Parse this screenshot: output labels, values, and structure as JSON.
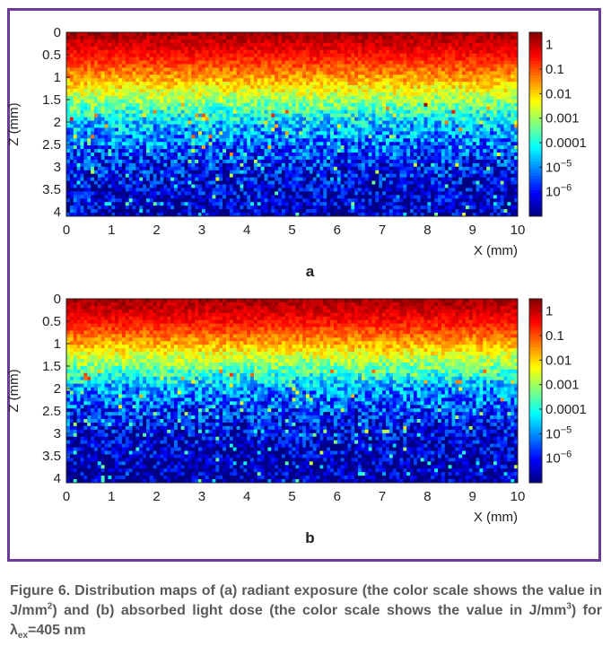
{
  "chart_data": [
    {
      "type": "heatmap",
      "panel_label": "a",
      "xlabel": "X (mm)",
      "ylabel": "Z (mm)",
      "xlim": [
        0,
        10
      ],
      "ylim": [
        0,
        4.1
      ],
      "y_axis_reversed": true,
      "x_ticks": [
        "0",
        "1",
        "2",
        "3",
        "4",
        "5",
        "6",
        "7",
        "8",
        "9",
        "10"
      ],
      "y_ticks": [
        "0",
        "0.5",
        "1",
        "1.5",
        "2",
        "2.5",
        "3",
        "3.5",
        "4"
      ],
      "colorscale": "jet",
      "color_scale_log": true,
      "colorbar_range_log10": [
        -7,
        0.5
      ],
      "colorbar_ticks": [
        {
          "value_log10": 0,
          "label": "1"
        },
        {
          "value_log10": -1,
          "label": "0.1"
        },
        {
          "value_log10": -2,
          "label": "0.01"
        },
        {
          "value_log10": -3,
          "label": "0.001"
        },
        {
          "value_log10": -4,
          "label": "0.0001"
        },
        {
          "value_log10": -5,
          "label": "10",
          "exp": "−5"
        },
        {
          "value_log10": -6,
          "label": "10",
          "exp": "−6"
        }
      ],
      "depth_profile_log10": {
        "z_mm": [
          0,
          0.5,
          1.0,
          1.5,
          2.0,
          2.5,
          3.0,
          3.5,
          4.1
        ],
        "value": [
          0.3,
          -0.5,
          -1.6,
          -3.0,
          -4.5,
          -5.3,
          -6.0,
          -6.4,
          -6.6
        ]
      }
    },
    {
      "type": "heatmap",
      "panel_label": "b",
      "xlabel": "X (mm)",
      "ylabel": "Z (mm)",
      "xlim": [
        0,
        10
      ],
      "ylim": [
        0,
        4.1
      ],
      "y_axis_reversed": true,
      "x_ticks": [
        "0",
        "1",
        "2",
        "3",
        "4",
        "5",
        "6",
        "7",
        "8",
        "9",
        "10"
      ],
      "y_ticks": [
        "0",
        "0.5",
        "1",
        "1.5",
        "2",
        "2.5",
        "3",
        "3.5",
        "4"
      ],
      "colorscale": "jet",
      "color_scale_log": true,
      "colorbar_range_log10": [
        -7,
        0.5
      ],
      "colorbar_ticks": [
        {
          "value_log10": 0,
          "label": "1"
        },
        {
          "value_log10": -1,
          "label": "0.1"
        },
        {
          "value_log10": -2,
          "label": "0.01"
        },
        {
          "value_log10": -3,
          "label": "0.001"
        },
        {
          "value_log10": -4,
          "label": "0.0001"
        },
        {
          "value_log10": -5,
          "label": "10",
          "exp": "−5"
        },
        {
          "value_log10": -6,
          "label": "10",
          "exp": "−6"
        }
      ],
      "depth_profile_log10": {
        "z_mm": [
          0,
          0.5,
          1.0,
          1.5,
          2.0,
          2.5,
          3.0,
          3.5,
          4.1
        ],
        "value": [
          0.3,
          -0.5,
          -1.7,
          -3.3,
          -4.9,
          -5.7,
          -6.3,
          -6.6,
          -6.8
        ]
      }
    }
  ],
  "caption": {
    "lead": "Figure 6. Distribution maps of (a) radiant exposure (the color scale shows the value in J/mm",
    "sup1": "2",
    "mid": ") and (b) absorbed light dose (the color scale shows the value in J/mm",
    "sup2": "3",
    "tail1": ") for λ",
    "sub": "ex",
    "tail2": "=405 nm"
  }
}
